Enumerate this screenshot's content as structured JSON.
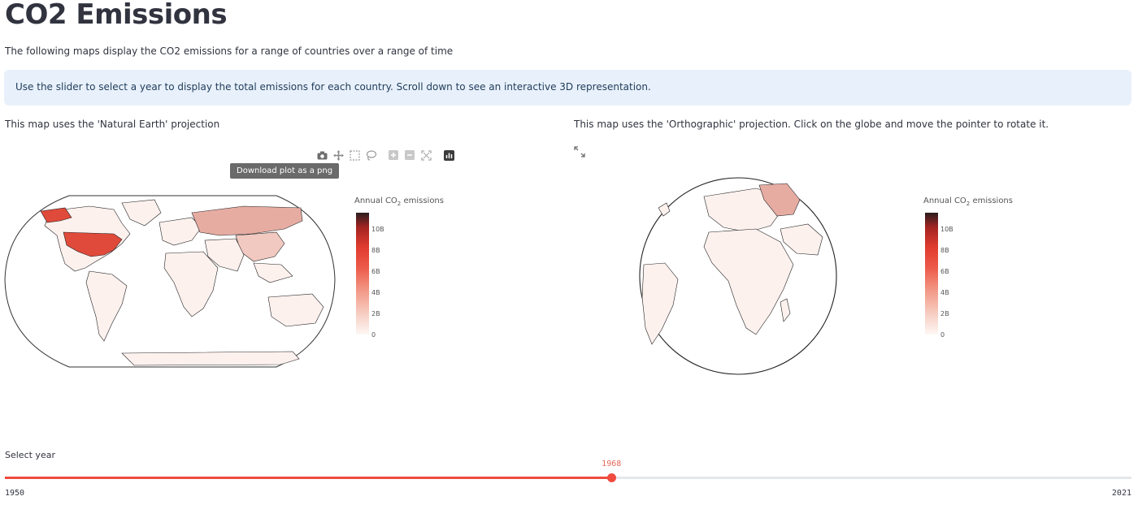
{
  "page": {
    "title": "CO2 Emissions",
    "subtitle": "The following maps display the CO2 emissions for a range of countries over a range of time",
    "info": "Use the slider to select a year to display the total emissions for each country. Scroll down to see an interactive 3D representation."
  },
  "left_map": {
    "caption": "This map uses the 'Natural Earth' projection",
    "tooltip": "Download plot as a png",
    "modebar": [
      "camera-icon",
      "pan-icon",
      "box-select-icon",
      "lasso-select-icon",
      "zoom-in-icon",
      "zoom-out-icon",
      "reset-icon",
      "plotly-logo-icon"
    ]
  },
  "right_map": {
    "caption": "This map uses the 'Orthographic' projection. Click on the globe and move the pointer to rotate it."
  },
  "colorbar": {
    "title_prefix": "Annual CO",
    "title_sub": "2",
    "title_suffix": " emissions",
    "ticks": [
      "10B",
      "8B",
      "6B",
      "4B",
      "2B",
      "0"
    ],
    "colors": {
      "max": "#2a1e1e",
      "high": "#e03b2e",
      "low": "#fef7f4"
    }
  },
  "slider": {
    "label": "Select year",
    "min": "1950",
    "max": "2021",
    "value": "1968",
    "fraction": 0.5384,
    "accent": "#ef4b3f"
  }
}
